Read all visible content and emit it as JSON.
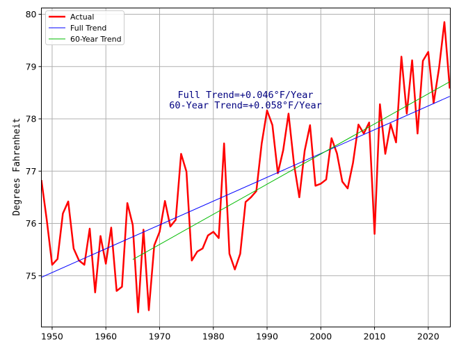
{
  "chart_data": {
    "type": "line",
    "title": "",
    "xlabel": "",
    "ylabel": "Degrees Fahrenheit",
    "xlim": [
      1948,
      2024.1
    ],
    "ylim": [
      74.02,
      80.12
    ],
    "grid": true,
    "legend_position": "top-left",
    "x_ticks": [
      1950,
      1960,
      1970,
      1980,
      1990,
      2000,
      2010,
      2020
    ],
    "y_ticks": [
      75,
      76,
      77,
      78,
      79,
      80
    ],
    "annotations": [
      "Full Trend=+0.046°F/Year",
      "60-Year Trend=+0.058°F/Year"
    ],
    "annotation_color": "#000080",
    "series": [
      {
        "name": "Actual",
        "color": "#ff0000",
        "x": [
          1948,
          1949,
          1950,
          1951,
          1952,
          1953,
          1954,
          1955,
          1956,
          1957,
          1958,
          1959,
          1960,
          1961,
          1962,
          1963,
          1964,
          1965,
          1966,
          1967,
          1968,
          1969,
          1970,
          1971,
          1972,
          1973,
          1974,
          1975,
          1976,
          1977,
          1978,
          1979,
          1980,
          1981,
          1982,
          1983,
          1984,
          1985,
          1986,
          1987,
          1988,
          1989,
          1990,
          1991,
          1992,
          1993,
          1994,
          1995,
          1996,
          1997,
          1998,
          1999,
          2000,
          2001,
          2002,
          2003,
          2004,
          2005,
          2006,
          2007,
          2008,
          2009,
          2010,
          2011,
          2012,
          2013,
          2014,
          2015,
          2016,
          2017,
          2018,
          2019,
          2020,
          2021,
          2022,
          2023,
          2024
        ],
        "values": [
          76.83,
          76.07,
          75.21,
          75.32,
          76.19,
          76.42,
          75.52,
          75.29,
          75.21,
          75.9,
          74.68,
          75.76,
          75.23,
          75.92,
          74.71,
          74.79,
          76.39,
          75.97,
          74.3,
          75.88,
          74.34,
          75.58,
          75.84,
          76.43,
          75.94,
          76.07,
          77.33,
          76.99,
          75.29,
          75.46,
          75.52,
          75.77,
          75.84,
          75.72,
          77.53,
          75.42,
          75.12,
          75.42,
          76.41,
          76.5,
          76.62,
          77.53,
          78.16,
          77.88,
          76.96,
          77.4,
          78.1,
          77.14,
          76.5,
          77.39,
          77.88,
          76.72,
          76.76,
          76.84,
          77.63,
          77.34,
          76.8,
          76.67,
          77.16,
          77.89,
          77.72,
          77.93,
          75.8,
          78.28,
          77.33,
          77.9,
          77.55,
          79.19,
          78.1,
          79.12,
          77.72,
          79.11,
          79.28,
          78.3,
          78.97,
          79.85,
          78.58
        ]
      },
      {
        "name": "Full Trend",
        "color": "#0000ff",
        "x": [
          1948,
          2024
        ],
        "values": [
          74.97,
          78.43
        ]
      },
      {
        "name": "60-Year Trend",
        "color": "#00bb00",
        "x": [
          1965,
          2024
        ],
        "values": [
          75.31,
          78.71
        ]
      }
    ]
  }
}
